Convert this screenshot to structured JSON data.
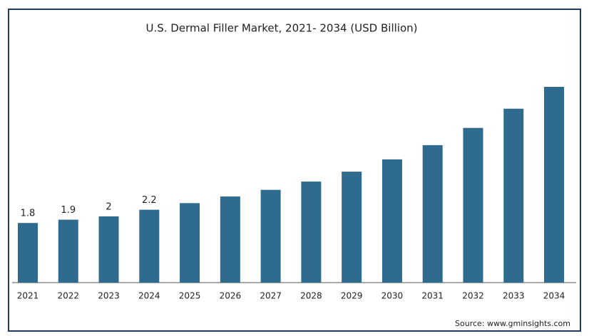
{
  "chart_data": {
    "type": "bar",
    "title": "U.S. Dermal Filler Market, 2021- 2034 (USD Billion)",
    "categories": [
      "2021",
      "2022",
      "2023",
      "2024",
      "2025",
      "2026",
      "2027",
      "2028",
      "2029",
      "2030",
      "2031",
      "2032",
      "2033",
      "2034"
    ],
    "values": [
      1.8,
      1.9,
      2,
      2.2,
      2.4,
      2.6,
      2.8,
      3.05,
      3.35,
      3.72,
      4.15,
      4.67,
      5.25,
      5.91
    ],
    "value_labels": [
      "1.8",
      "1.9",
      "2",
      "2.2",
      null,
      null,
      null,
      null,
      null,
      null,
      null,
      null,
      null,
      null
    ],
    "color": "#2e6b8e",
    "source": "Source: www.gminsights.com"
  }
}
